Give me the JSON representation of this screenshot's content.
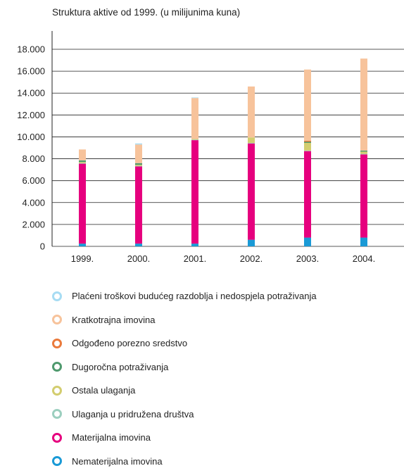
{
  "chart_data": {
    "type": "bar",
    "stacked": true,
    "title": "Struktura aktive od 1999. (u milijunima kuna)",
    "xlabel": "",
    "ylabel": "",
    "ylim": [
      0,
      18000
    ],
    "yticks": [
      "0",
      "2.000",
      "4.000",
      "6.000",
      "8.000",
      "10.000",
      "12.000",
      "14.000",
      "16.000",
      "18.000"
    ],
    "ytick_values": [
      0,
      2000,
      4000,
      6000,
      8000,
      10000,
      12000,
      14000,
      16000,
      18000
    ],
    "grid": true,
    "legend_position": "bottom",
    "categories": [
      "1999.",
      "2000.",
      "2001.",
      "2002.",
      "2003.",
      "2004."
    ],
    "series": [
      {
        "name": "Nematerijalna imovina",
        "color": "#1a9ad6",
        "values": [
          250,
          250,
          250,
          600,
          800,
          800
        ]
      },
      {
        "name": "Materijalna imovina",
        "color": "#e6007e",
        "values": [
          7300,
          7050,
          9450,
          8800,
          7900,
          7600
        ]
      },
      {
        "name": "Ulaganja u pridružena društva",
        "color": "#9ccfbf",
        "values": [
          50,
          50,
          50,
          50,
          50,
          50
        ]
      },
      {
        "name": "Ostala ulaganja",
        "color": "#d3cd6f",
        "values": [
          100,
          100,
          50,
          500,
          700,
          200
        ]
      },
      {
        "name": "Dugoročna potraživanja",
        "color": "#4f9a6e",
        "values": [
          150,
          150,
          0,
          0,
          100,
          100
        ]
      },
      {
        "name": "Odgođeno porezno sredstvo",
        "color": "#ea7a3c",
        "values": [
          0,
          0,
          0,
          0,
          100,
          0
        ]
      },
      {
        "name": "Kratkotrajna imovina",
        "color": "#f7c39b",
        "values": [
          1000,
          1700,
          3750,
          4650,
          6500,
          8400
        ]
      },
      {
        "name": "Plaćeni troškovi budućeg razdoblja i nedospjela potraživanja",
        "color": "#a7dcf3",
        "values": [
          0,
          100,
          50,
          0,
          0,
          0
        ]
      }
    ],
    "legend_order": [
      "Plaćeni troškovi budućeg razdoblja i nedospjela potraživanja",
      "Kratkotrajna imovina",
      "Odgođeno porezno sredstvo",
      "Dugoročna potraživanja",
      "Ostala ulaganja",
      "Ulaganja u pridružena društva",
      "Materijalna imovina",
      "Nematerijalna imovina"
    ]
  }
}
